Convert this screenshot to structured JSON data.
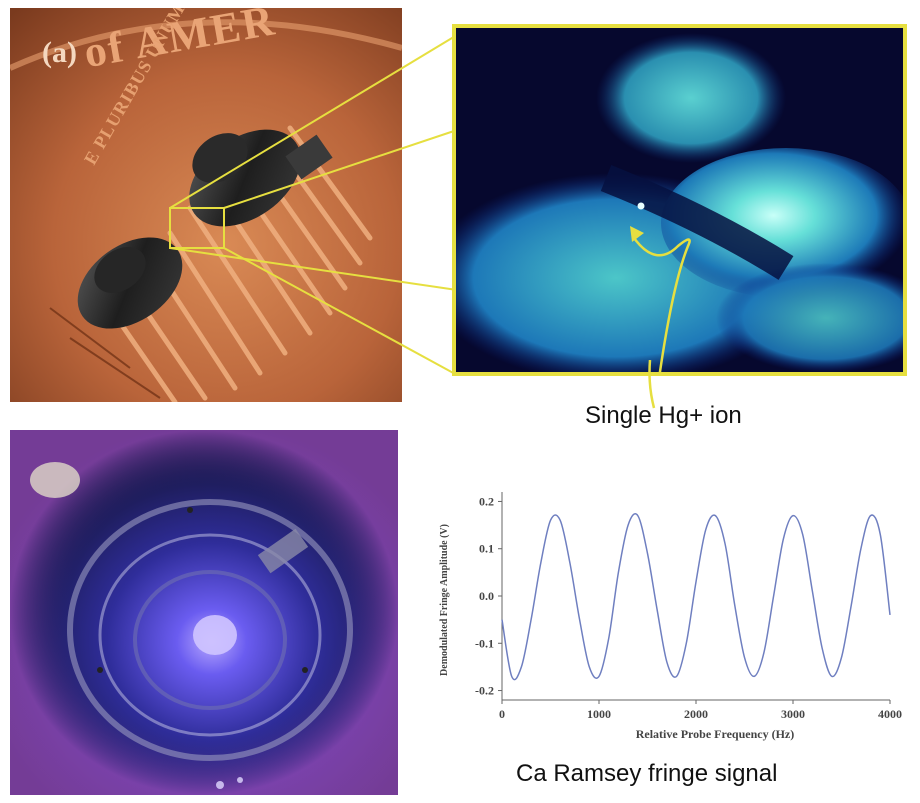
{
  "panels": {
    "coin_photo": {
      "label": "(a)",
      "engraving_top": "of AMER",
      "engraving_side": "E PLURIBUS UNUM"
    },
    "ion_image": {
      "caption": "Single Hg+ ion"
    },
    "trap_photo": {},
    "ramsey_chart": {
      "caption": "Ca Ramsey fringe signal"
    }
  },
  "chart_data": {
    "type": "line",
    "xlabel": "Relative Probe Frequency (Hz)",
    "ylabel": "Demodulated Fringe Amplitude (V)",
    "xlim": [
      0,
      4000
    ],
    "ylim": [
      -0.22,
      0.22
    ],
    "xticks": [
      "0",
      "1000",
      "2000",
      "3000",
      "4000"
    ],
    "yticks": [
      "0.2",
      "0.1",
      "0.0",
      "-0.1",
      "-0.2"
    ],
    "grid": false,
    "series": [
      {
        "color": "#6f7fc0",
        "x": [
          0,
          100,
          200,
          300,
          400,
          500,
          600,
          700,
          800,
          900,
          1000,
          1100,
          1200,
          1300,
          1400,
          1500,
          1600,
          1700,
          1800,
          1900,
          2000,
          2100,
          2200,
          2300,
          2400,
          2500,
          2600,
          2700,
          2800,
          2900,
          3000,
          3100,
          3200,
          3300,
          3400,
          3500,
          3600,
          3700,
          3800,
          3900,
          4000
        ],
        "y": [
          -0.05,
          -0.17,
          -0.15,
          -0.05,
          0.07,
          0.16,
          0.16,
          0.07,
          -0.05,
          -0.15,
          -0.17,
          -0.09,
          0.05,
          0.15,
          0.17,
          0.09,
          -0.03,
          -0.14,
          -0.17,
          -0.1,
          0.03,
          0.14,
          0.17,
          0.11,
          -0.02,
          -0.13,
          -0.17,
          -0.12,
          0.0,
          0.12,
          0.17,
          0.13,
          0.01,
          -0.11,
          -0.17,
          -0.13,
          -0.02,
          0.1,
          0.17,
          0.13,
          -0.04
        ]
      }
    ]
  }
}
